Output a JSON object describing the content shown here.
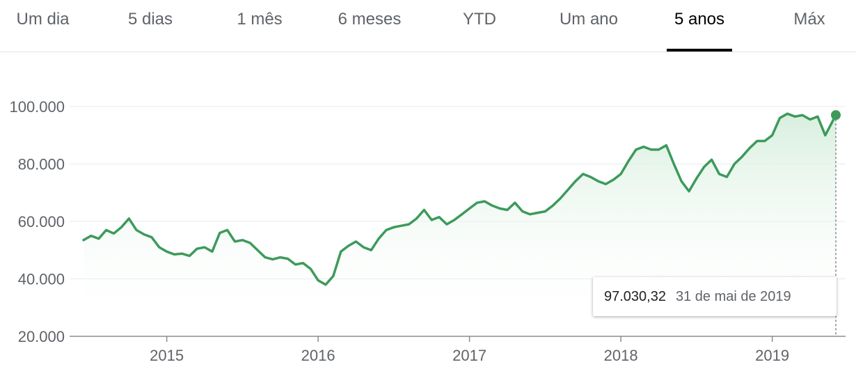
{
  "tabs": [
    {
      "label": "Um dia",
      "active": false
    },
    {
      "label": "5 dias",
      "active": false
    },
    {
      "label": "1 mês",
      "active": false
    },
    {
      "label": "6 meses",
      "active": false
    },
    {
      "label": "YTD",
      "active": false
    },
    {
      "label": "Um ano",
      "active": false
    },
    {
      "label": "5 anos",
      "active": true
    },
    {
      "label": "Máx",
      "active": false
    }
  ],
  "tooltip": {
    "value": "97.030,32",
    "date": "31 de mai de 2019"
  },
  "colors": {
    "line": "#3d9a5b",
    "fill_top": "#d6eedd",
    "grid": "#e8eaed",
    "axis": "#8a8d90"
  },
  "chart_data": {
    "type": "area",
    "title": "",
    "xlabel": "",
    "ylabel": "",
    "ylim": [
      20000,
      100000
    ],
    "yticks": [
      20000,
      40000,
      60000,
      80000,
      100000
    ],
    "ytick_labels": [
      "20.000",
      "40.000",
      "60.000",
      "80.000",
      "100.000"
    ],
    "xlim": [
      2014.45,
      2019.42
    ],
    "xticks": [
      2015,
      2016,
      2017,
      2018,
      2019
    ],
    "xtick_labels": [
      "2015",
      "2016",
      "2017",
      "2018",
      "2019"
    ],
    "grid": true,
    "x": [
      2014.45,
      2014.5,
      2014.55,
      2014.6,
      2014.65,
      2014.7,
      2014.75,
      2014.8,
      2014.85,
      2014.9,
      2014.95,
      2015.0,
      2015.05,
      2015.1,
      2015.15,
      2015.2,
      2015.25,
      2015.3,
      2015.35,
      2015.4,
      2015.45,
      2015.5,
      2015.55,
      2015.6,
      2015.65,
      2015.7,
      2015.75,
      2015.8,
      2015.85,
      2015.9,
      2015.95,
      2016.0,
      2016.05,
      2016.1,
      2016.15,
      2016.2,
      2016.25,
      2016.3,
      2016.35,
      2016.4,
      2016.45,
      2016.5,
      2016.55,
      2016.6,
      2016.65,
      2016.7,
      2016.75,
      2016.8,
      2016.85,
      2016.9,
      2016.95,
      2017.0,
      2017.05,
      2017.1,
      2017.15,
      2017.2,
      2017.25,
      2017.3,
      2017.35,
      2017.4,
      2017.45,
      2017.5,
      2017.55,
      2017.6,
      2017.65,
      2017.7,
      2017.75,
      2017.8,
      2017.85,
      2017.9,
      2017.95,
      2018.0,
      2018.05,
      2018.1,
      2018.15,
      2018.2,
      2018.25,
      2018.3,
      2018.35,
      2018.4,
      2018.45,
      2018.5,
      2018.55,
      2018.6,
      2018.65,
      2018.7,
      2018.75,
      2018.8,
      2018.85,
      2018.9,
      2018.95,
      2019.0,
      2019.05,
      2019.1,
      2019.15,
      2019.2,
      2019.25,
      2019.3,
      2019.35,
      2019.42
    ],
    "series": [
      {
        "values": [
          53500,
          55000,
          54000,
          57000,
          55800,
          58000,
          61000,
          57000,
          55500,
          54500,
          51000,
          49500,
          48500,
          48800,
          48000,
          50500,
          51000,
          49500,
          56000,
          57000,
          53000,
          53500,
          52500,
          50000,
          47500,
          46800,
          47500,
          47000,
          45000,
          45500,
          43500,
          39500,
          38000,
          41000,
          49500,
          51500,
          53000,
          51000,
          50000,
          54000,
          57000,
          58000,
          58500,
          59000,
          61000,
          64000,
          60500,
          61500,
          59000,
          60500,
          62500,
          64500,
          66500,
          67000,
          65500,
          64500,
          64000,
          66500,
          63500,
          62500,
          63000,
          63500,
          65500,
          68000,
          71000,
          74000,
          76500,
          75500,
          74000,
          73000,
          74500,
          76500,
          81000,
          85000,
          86000,
          85000,
          85000,
          86500,
          80000,
          74000,
          70500,
          75000,
          79000,
          81500,
          76500,
          75500,
          80000,
          82500,
          85500,
          88000,
          88000,
          90000,
          96000,
          97500,
          96500,
          97000,
          95500,
          96500,
          90000,
          97030
        ]
      }
    ],
    "last_point": {
      "x": 2019.42,
      "y": 97030.32
    }
  }
}
